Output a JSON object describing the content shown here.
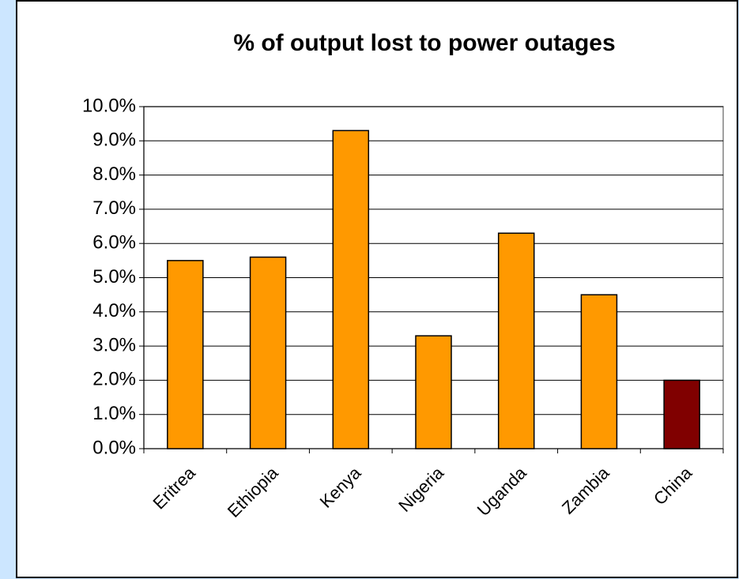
{
  "chart_data": {
    "type": "bar",
    "title": "% of output lost to power outages",
    "categories": [
      "Eritrea",
      "Ethiopia",
      "Kenya",
      "Nigeria",
      "Uganda",
      "Zambia",
      "China"
    ],
    "values": [
      5.5,
      5.6,
      9.3,
      3.3,
      6.3,
      4.5,
      2.0
    ],
    "colors": [
      "#ff9900",
      "#ff9900",
      "#ff9900",
      "#ff9900",
      "#ff9900",
      "#ff9900",
      "#800000"
    ],
    "ylim": [
      0,
      10
    ],
    "yticks": [
      {
        "value": 0,
        "label": "0.0%"
      },
      {
        "value": 1,
        "label": "1.0%"
      },
      {
        "value": 2,
        "label": "2.0%"
      },
      {
        "value": 3,
        "label": "3.0%"
      },
      {
        "value": 4,
        "label": "4.0%"
      },
      {
        "value": 5,
        "label": "5.0%"
      },
      {
        "value": 6,
        "label": "6.0%"
      },
      {
        "value": 7,
        "label": "7.0%"
      },
      {
        "value": 8,
        "label": "8.0%"
      },
      {
        "value": 9,
        "label": "9.0%"
      },
      {
        "value": 10,
        "label": "10.0%"
      }
    ],
    "grid": true
  }
}
